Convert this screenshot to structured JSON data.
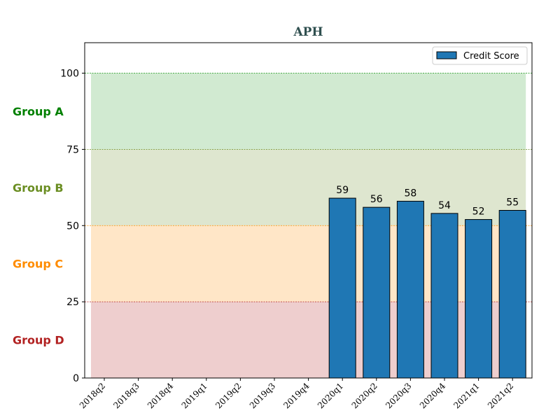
{
  "chart_data": {
    "type": "bar",
    "title": "APH",
    "xlabel": "",
    "ylabel": "",
    "categories": [
      "2018q2",
      "2018q3",
      "2018q4",
      "2019q1",
      "2019q2",
      "2019q3",
      "2019q4",
      "2020q1",
      "2020q2",
      "2020q3",
      "2020q4",
      "2021q1",
      "2021q2"
    ],
    "series": [
      {
        "name": "Credit Score",
        "values": [
          null,
          null,
          null,
          null,
          null,
          null,
          null,
          59,
          56,
          58,
          54,
          52,
          55
        ],
        "color": "#1f77b4"
      }
    ],
    "ylim": [
      0,
      110
    ],
    "yticks": [
      0,
      25,
      50,
      75,
      100
    ],
    "legend_position": "top-right",
    "grid": false,
    "bands": [
      {
        "label": "Group A",
        "from": 75,
        "to": 100,
        "color": "#2ca02c",
        "text_color": "#008000"
      },
      {
        "label": "Group B",
        "from": 50,
        "to": 75,
        "color": "#6b8e23",
        "text_color": "#6b8e23"
      },
      {
        "label": "Group C",
        "from": 25,
        "to": 50,
        "color": "#ff8c00",
        "text_color": "#ff8c00"
      },
      {
        "label": "Group D",
        "from": 0,
        "to": 25,
        "color": "#b22222",
        "text_color": "#b22222"
      }
    ]
  }
}
